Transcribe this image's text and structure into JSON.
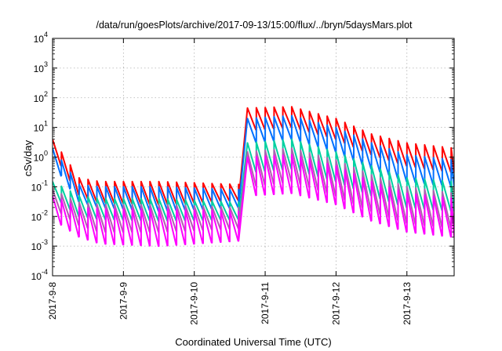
{
  "chart_data": {
    "type": "line",
    "title": "/data/run/goesPlots/archive/2017-09-13/15:00/flux/../bryn/5daysMars.plot",
    "xlabel": "Coordinated Universal Time (UTC)",
    "ylabel": "cSv/day",
    "y_scale": "log",
    "ylim": [
      0.0001,
      10000
    ],
    "y_ticks": [
      {
        "value": 0.0001,
        "base": "10",
        "exp": "-4"
      },
      {
        "value": 0.001,
        "base": "10",
        "exp": "-3"
      },
      {
        "value": 0.01,
        "base": "10",
        "exp": "-2"
      },
      {
        "value": 0.1,
        "base": "10",
        "exp": "-1"
      },
      {
        "value": 1,
        "base": "10",
        "exp": "0"
      },
      {
        "value": 10,
        "base": "10",
        "exp": "1"
      },
      {
        "value": 100,
        "base": "10",
        "exp": "2"
      },
      {
        "value": 1000,
        "base": "10",
        "exp": "3"
      },
      {
        "value": 10000,
        "base": "10",
        "exp": "4"
      }
    ],
    "xlim": [
      "2017-09-08T00:00",
      "2017-09-13T16:00"
    ],
    "x_ticks": [
      {
        "value": "2017-09-08T00:00",
        "label": "2017-9-8"
      },
      {
        "value": "2017-09-09T00:00",
        "label": "2017-9-9"
      },
      {
        "value": "2017-09-10T00:00",
        "label": "2017-9-10"
      },
      {
        "value": "2017-09-11T00:00",
        "label": "2017-9-11"
      },
      {
        "value": "2017-09-12T00:00",
        "label": "2017-9-12"
      },
      {
        "value": "2017-09-13T00:00",
        "label": "2017-9-13"
      }
    ],
    "grid": true,
    "oscillation_period_hours": 3,
    "event_onset": "2017-09-10T16:00",
    "series": [
      {
        "color": "#ff0000",
        "peaks": [
          [
            "2017-09-08T00:00",
            4
          ],
          [
            "2017-09-08T09:00",
            0.2
          ],
          [
            "2017-09-08T16:00",
            0.15
          ],
          [
            "2017-09-09T12:00",
            0.15
          ],
          [
            "2017-09-10T15:00",
            0.12
          ],
          [
            "2017-09-10T18:00",
            45
          ],
          [
            "2017-09-11T09:00",
            50
          ],
          [
            "2017-09-12T00:00",
            20
          ],
          [
            "2017-09-12T12:00",
            6
          ],
          [
            "2017-09-13T00:00",
            3
          ],
          [
            "2017-09-13T16:00",
            2
          ]
        ],
        "troughs": [
          [
            "2017-09-08T00:00",
            1.5
          ],
          [
            "2017-09-08T09:00",
            0.05
          ],
          [
            "2017-09-08T16:00",
            0.03
          ],
          [
            "2017-09-09T12:00",
            0.025
          ],
          [
            "2017-09-10T15:00",
            0.035
          ],
          [
            "2017-09-10T18:00",
            8
          ],
          [
            "2017-09-11T09:00",
            10
          ],
          [
            "2017-09-12T00:00",
            4
          ],
          [
            "2017-09-12T12:00",
            1.2
          ],
          [
            "2017-09-13T00:00",
            0.5
          ],
          [
            "2017-09-13T16:00",
            0.3
          ]
        ]
      },
      {
        "color": "#0070ff",
        "peaks": [
          [
            "2017-09-08T00:00",
            2
          ],
          [
            "2017-09-08T09:00",
            0.12
          ],
          [
            "2017-09-08T16:00",
            0.1
          ],
          [
            "2017-09-09T12:00",
            0.1
          ],
          [
            "2017-09-10T15:00",
            0.08
          ],
          [
            "2017-09-10T18:00",
            20
          ],
          [
            "2017-09-11T09:00",
            25
          ],
          [
            "2017-09-12T00:00",
            10
          ],
          [
            "2017-09-12T12:00",
            3
          ],
          [
            "2017-09-13T00:00",
            1.2
          ],
          [
            "2017-09-13T16:00",
            0.8
          ]
        ],
        "troughs": [
          [
            "2017-09-08T00:00",
            0.6
          ],
          [
            "2017-09-08T09:00",
            0.03
          ],
          [
            "2017-09-08T16:00",
            0.02
          ],
          [
            "2017-09-09T12:00",
            0.015
          ],
          [
            "2017-09-10T15:00",
            0.02
          ],
          [
            "2017-09-10T18:00",
            3
          ],
          [
            "2017-09-11T09:00",
            4
          ],
          [
            "2017-09-12T00:00",
            1.5
          ],
          [
            "2017-09-12T12:00",
            0.4
          ],
          [
            "2017-09-13T00:00",
            0.15
          ],
          [
            "2017-09-13T16:00",
            0.1
          ]
        ]
      },
      {
        "color": "#00d0a0",
        "peaks": [
          [
            "2017-09-08T00:00",
            0.15
          ],
          [
            "2017-09-08T09:00",
            0.05
          ],
          [
            "2017-09-08T16:00",
            0.04
          ],
          [
            "2017-09-09T12:00",
            0.04
          ],
          [
            "2017-09-10T15:00",
            0.03
          ],
          [
            "2017-09-10T18:00",
            3
          ],
          [
            "2017-09-11T09:00",
            4
          ],
          [
            "2017-09-12T00:00",
            1.5
          ],
          [
            "2017-09-12T12:00",
            0.5
          ],
          [
            "2017-09-13T00:00",
            0.2
          ],
          [
            "2017-09-13T16:00",
            0.15
          ]
        ],
        "troughs": [
          [
            "2017-09-08T00:00",
            0.05
          ],
          [
            "2017-09-08T09:00",
            0.01
          ],
          [
            "2017-09-08T16:00",
            0.008
          ],
          [
            "2017-09-09T12:00",
            0.007
          ],
          [
            "2017-09-10T15:00",
            0.008
          ],
          [
            "2017-09-10T18:00",
            0.3
          ],
          [
            "2017-09-11T09:00",
            0.4
          ],
          [
            "2017-09-12T00:00",
            0.15
          ],
          [
            "2017-09-12T12:00",
            0.05
          ],
          [
            "2017-09-13T00:00",
            0.02
          ],
          [
            "2017-09-13T16:00",
            0.015
          ]
        ]
      },
      {
        "color": "#b060b0",
        "peaks": [
          [
            "2017-09-08T00:00",
            0.08
          ],
          [
            "2017-09-08T09:00",
            0.03
          ],
          [
            "2017-09-08T16:00",
            0.025
          ],
          [
            "2017-09-09T12:00",
            0.025
          ],
          [
            "2017-09-10T15:00",
            0.02
          ],
          [
            "2017-09-10T18:00",
            1.5
          ],
          [
            "2017-09-11T09:00",
            2
          ],
          [
            "2017-09-12T00:00",
            0.8
          ],
          [
            "2017-09-12T12:00",
            0.25
          ],
          [
            "2017-09-13T00:00",
            0.1
          ],
          [
            "2017-09-13T16:00",
            0.06
          ]
        ],
        "troughs": [
          [
            "2017-09-08T00:00",
            0.02
          ],
          [
            "2017-09-08T09:00",
            0.005
          ],
          [
            "2017-09-08T16:00",
            0.003
          ],
          [
            "2017-09-09T12:00",
            0.003
          ],
          [
            "2017-09-10T15:00",
            0.004
          ],
          [
            "2017-09-10T18:00",
            0.1
          ],
          [
            "2017-09-11T09:00",
            0.15
          ],
          [
            "2017-09-12T00:00",
            0.05
          ],
          [
            "2017-09-12T12:00",
            0.015
          ],
          [
            "2017-09-13T00:00",
            0.006
          ],
          [
            "2017-09-13T16:00",
            0.004
          ]
        ]
      },
      {
        "color": "#ff00ff",
        "peaks": [
          [
            "2017-09-08T00:00",
            0.05
          ],
          [
            "2017-09-08T09:00",
            0.02
          ],
          [
            "2017-09-08T16:00",
            0.018
          ],
          [
            "2017-09-09T12:00",
            0.018
          ],
          [
            "2017-09-10T15:00",
            0.015
          ],
          [
            "2017-09-10T18:00",
            1
          ],
          [
            "2017-09-11T09:00",
            1.2
          ],
          [
            "2017-09-12T00:00",
            0.5
          ],
          [
            "2017-09-12T12:00",
            0.15
          ],
          [
            "2017-09-13T00:00",
            0.06
          ],
          [
            "2017-09-13T16:00",
            0.04
          ]
        ],
        "troughs": [
          [
            "2017-09-08T00:00",
            0.008
          ],
          [
            "2017-09-08T09:00",
            0.002
          ],
          [
            "2017-09-08T16:00",
            0.0012
          ],
          [
            "2017-09-09T12:00",
            0.001
          ],
          [
            "2017-09-10T15:00",
            0.0015
          ],
          [
            "2017-09-10T18:00",
            0.05
          ],
          [
            "2017-09-11T09:00",
            0.06
          ],
          [
            "2017-09-12T00:00",
            0.025
          ],
          [
            "2017-09-12T12:00",
            0.007
          ],
          [
            "2017-09-13T00:00",
            0.003
          ],
          [
            "2017-09-13T16:00",
            0.002
          ]
        ]
      }
    ]
  }
}
